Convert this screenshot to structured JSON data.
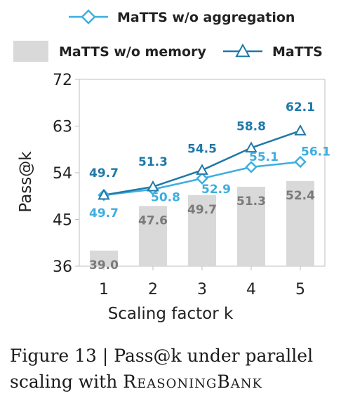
{
  "chart_data": {
    "type": "bar",
    "categories": [
      "1",
      "2",
      "3",
      "4",
      "5"
    ],
    "xlabel": "Scaling factor k",
    "ylabel": "Pass@k",
    "ylim": [
      36,
      72
    ],
    "yticks": [
      36,
      45,
      54,
      63,
      72
    ],
    "grid": false,
    "legend": {
      "placement": "top",
      "entries": [
        {
          "series": "aggregation",
          "label": "MaTTS w/o aggregation"
        },
        {
          "series": "memory",
          "label": "MaTTS w/o memory"
        },
        {
          "series": "matts",
          "label": "MaTTS"
        }
      ]
    },
    "series": [
      {
        "key": "memory",
        "name": "MaTTS w/o memory",
        "kind": "bar",
        "values": [
          39.0,
          47.6,
          49.7,
          51.3,
          52.4
        ],
        "labels": [
          "39.0",
          "47.6",
          "49.7",
          "51.3",
          "52.4"
        ],
        "color": "#d9d9d9",
        "label_color": "#7a7a7a"
      },
      {
        "key": "aggregation",
        "name": "MaTTS w/o aggregation",
        "kind": "line",
        "marker": "diamond",
        "values": [
          49.7,
          50.8,
          52.9,
          55.1,
          56.1
        ],
        "labels": [
          "49.7",
          "50.8",
          "52.9",
          "55.1",
          "56.1"
        ],
        "color": "#3daee0",
        "label_color": "#3daee0"
      },
      {
        "key": "matts",
        "name": "MaTTS",
        "kind": "line",
        "marker": "triangle",
        "values": [
          49.7,
          51.3,
          54.5,
          58.8,
          62.1
        ],
        "labels": [
          "49.7",
          "51.3",
          "54.5",
          "58.8",
          "62.1"
        ],
        "color": "#1f78a8",
        "label_color": "#1f78a8"
      }
    ]
  },
  "caption": {
    "prefix": "Figure 13 | Pass@k under parallel scaling with",
    "name": "ReasoningBank"
  }
}
